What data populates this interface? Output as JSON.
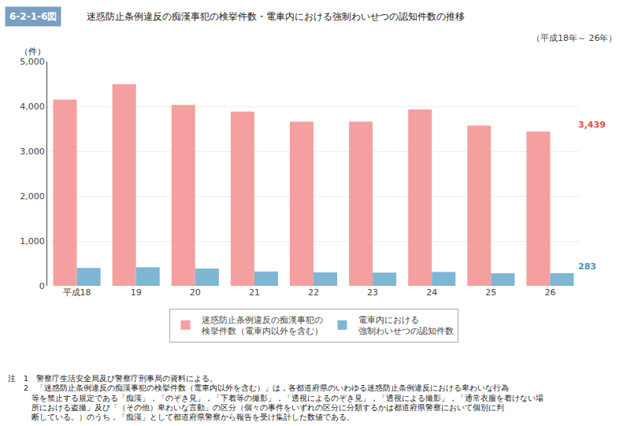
{
  "chart_data": {
    "type": "bar",
    "title_box": "6-2-1-6図",
    "title_box_color": "#7A9FC0",
    "title": "迷惑防止条例違反の痴漢事犯の検挙件数・電車内における強制わいせつの認知件数の推移",
    "subtitle": "（平成18年～ 26年）",
    "ylabel": "（件）",
    "categories": [
      "平成18",
      "19",
      "20",
      "21",
      "22",
      "23",
      "24",
      "25",
      "26"
    ],
    "series": [
      {
        "name": "迷惑防止条例違反の痴漢事犯の\n検挙件数（電車内以外を含む）",
        "color": "#F4A0A0",
        "values": [
          4150,
          4490,
          4030,
          3880,
          3660,
          3660,
          3930,
          3570,
          3439
        ]
      },
      {
        "name": "電車内における\n強制わいせつの認知件数",
        "color": "#7EB6D4",
        "values": [
          400,
          415,
          385,
          320,
          300,
          295,
          310,
          280,
          283
        ]
      }
    ],
    "ylim": [
      0,
      5000
    ],
    "yticks": [
      0,
      {
        "value": 1000,
        "label": "1,000"
      },
      {
        "value": 2000,
        "label": "2,000"
      },
      {
        "value": 3000,
        "label": "3,000"
      },
      {
        "value": 4000,
        "label": "4,000"
      },
      {
        "value": 5000,
        "label": "5,000"
      }
    ],
    "grid": true,
    "legend": "bottom",
    "annotations": [
      {
        "text": "3,439",
        "x": "26",
        "y": 3439,
        "color": "#E05050"
      },
      {
        "text": "283",
        "x": "26",
        "y": 283,
        "color": "#4A90C0"
      }
    ],
    "notes": [
      "注　1　警察庁生活安全局及び警察庁刑事局の資料による。",
      "　　2　「迷惑防止条例違反の痴漢事犯の検挙件数（電車内以外を含む）」は，各都道府県のいわゆる迷惑防止条例違反における卑わいな行為",
      "　　　等を禁止する規定である「痴漢」，「のぞき見」，「下着等の撮影」，「透視によるのぞき見」，「透視による撮影」，「通常衣服を着けない場",
      "　　　所における盗撮」及び「（その他）卑わいな言動」の区分（個々の事件をいずれの区分に分類するかは都道府県警察において個別に判",
      "　　　断している。）のうち，「痴漢」として都道府県警察から報告を受け集計した数値である。"
    ]
  }
}
